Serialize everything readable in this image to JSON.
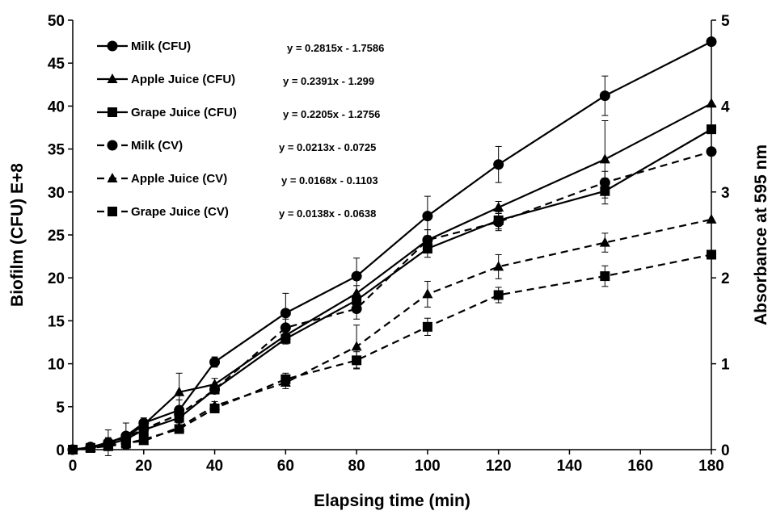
{
  "chart_data": {
    "type": "line",
    "title": "",
    "xlabel": "Elapsing time (min)",
    "ylabel": "Biofilm (CFU) E+8",
    "y2label": "Absorbance at 595 nm",
    "xlim": [
      0,
      180
    ],
    "ylim": [
      0,
      50
    ],
    "y2lim": [
      0,
      5
    ],
    "x_ticks": [
      0,
      20,
      40,
      60,
      80,
      100,
      120,
      140,
      160,
      180
    ],
    "y_ticks": [
      0,
      5,
      10,
      15,
      20,
      25,
      30,
      35,
      40,
      45,
      50
    ],
    "y2_ticks": [
      0,
      1,
      2,
      3,
      4,
      5
    ],
    "grid": false,
    "legend_position": "top-left",
    "x": [
      0,
      5,
      10,
      15,
      20,
      30,
      40,
      60,
      80,
      100,
      120,
      150,
      180
    ],
    "series": [
      {
        "name": "Milk (CFU)",
        "axis": "left",
        "line_style": "solid",
        "marker": "circle",
        "equation": "y = 0.2815x - 1.7586",
        "values": [
          0,
          0.3,
          0.8,
          1.6,
          3.1,
          4.6,
          10.2,
          15.9,
          20.2,
          27.2,
          33.2,
          41.2,
          47.5
        ],
        "errors": [
          0,
          0.3,
          1.5,
          1.5,
          0.6,
          1.2,
          0.6,
          2.3,
          2.1,
          2.3,
          2.1,
          2.3,
          0
        ]
      },
      {
        "name": "Apple Juice (CFU)",
        "axis": "left",
        "line_style": "solid",
        "marker": "triangle",
        "equation": "y = 0.2391x - 1.299",
        "values": [
          0,
          0.2,
          0.9,
          1.4,
          2.9,
          6.7,
          7.6,
          13.3,
          18.2,
          24.4,
          28.2,
          33.8,
          40.3
        ],
        "errors": [
          0,
          0.2,
          0.5,
          0.4,
          0.4,
          2.2,
          0.7,
          0.8,
          0.9,
          1.2,
          0.7,
          4.5,
          0
        ]
      },
      {
        "name": "Grape Juice (CFU)",
        "axis": "left",
        "line_style": "solid",
        "marker": "square",
        "equation": "y = 0.2205x - 1.2756",
        "values": [
          0,
          0.2,
          0.6,
          1.2,
          2.3,
          3.7,
          7.0,
          12.9,
          17.4,
          23.4,
          26.7,
          30.1,
          37.3
        ],
        "errors": [
          0,
          0.2,
          0.3,
          0.3,
          0.3,
          0.5,
          0.5,
          0.6,
          0.8,
          1.0,
          1.0,
          1.5,
          0
        ]
      },
      {
        "name": "Milk  (CV)",
        "axis": "right",
        "line_style": "dashed",
        "marker": "circle",
        "equation": "y = 0.0213x - 0.0725",
        "values": [
          0,
          0.03,
          0.08,
          0.14,
          0.24,
          0.41,
          0.7,
          1.42,
          1.64,
          2.44,
          2.65,
          3.11,
          3.47
        ],
        "errors": [
          0,
          0.02,
          0.05,
          0.05,
          0.04,
          0.07,
          0.05,
          0.1,
          0.12,
          0.12,
          0.1,
          0.13,
          0
        ]
      },
      {
        "name": "Apple Juice (CV)",
        "axis": "right",
        "line_style": "dashed",
        "marker": "triangle",
        "equation": "y = 0.0168x - 0.1103",
        "values": [
          0,
          0.02,
          0.05,
          0.08,
          0.1,
          0.26,
          0.51,
          0.78,
          1.2,
          1.81,
          2.13,
          2.41,
          2.68
        ],
        "errors": [
          0,
          0.02,
          0.03,
          0.03,
          0.03,
          0.05,
          0.05,
          0.07,
          0.25,
          0.15,
          0.14,
          0.11,
          0
        ]
      },
      {
        "name": "Grape Juice (CV)",
        "axis": "right",
        "line_style": "dashed",
        "marker": "square",
        "equation": "y = 0.0138x - 0.0638",
        "values": [
          0,
          0.02,
          0.04,
          0.07,
          0.12,
          0.24,
          0.48,
          0.82,
          1.04,
          1.43,
          1.8,
          2.02,
          2.27
        ],
        "errors": [
          0,
          0.02,
          0.02,
          0.02,
          0.03,
          0.04,
          0.05,
          0.07,
          0.1,
          0.1,
          0.09,
          0.12,
          0
        ]
      }
    ]
  }
}
